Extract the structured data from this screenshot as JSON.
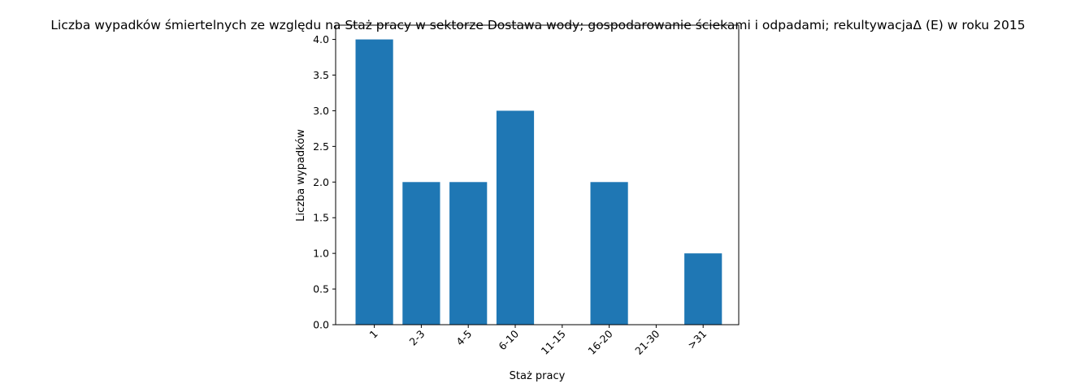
{
  "chart_data": {
    "type": "bar",
    "title": "Liczba wypadków śmiertelnych ze względu na Staż pracy w sektorze Dostawa wody; gospodarowanie ściekami i odpadami;  rekultywacjaΔ  (E) w roku 2015",
    "xlabel": "Staż pracy",
    "ylabel": "Liczba wypadków",
    "categories": [
      "1",
      "2-3",
      "4-5",
      "6-10",
      "11-15",
      "16-20",
      "21-30",
      ">31"
    ],
    "values": [
      4,
      2,
      2,
      3,
      0,
      2,
      0,
      1
    ],
    "ylim": [
      0,
      4.2
    ],
    "yticks": [
      "0.0",
      "0.5",
      "1.0",
      "1.5",
      "2.0",
      "2.5",
      "3.0",
      "3.5",
      "4.0"
    ],
    "bar_color": "#1f77b4",
    "grid": false,
    "legend": "none"
  }
}
